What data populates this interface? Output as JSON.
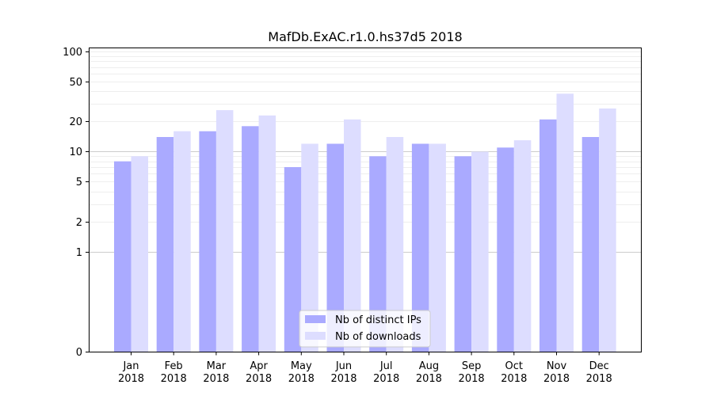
{
  "chart_data": {
    "type": "bar",
    "title": "MafDb.ExAC.r1.0.hs37d5 2018",
    "xlabel": "",
    "ylabel": "",
    "yscale": "symlog",
    "ylim": [
      0,
      110
    ],
    "yticks": [
      0,
      1,
      2,
      5,
      10,
      20,
      50,
      100
    ],
    "ytick_labels": [
      "0",
      "1",
      "2",
      "5",
      "10",
      "20",
      "50",
      "100"
    ],
    "categories": [
      {
        "month": "Jan",
        "year": "2018"
      },
      {
        "month": "Feb",
        "year": "2018"
      },
      {
        "month": "Mar",
        "year": "2018"
      },
      {
        "month": "Apr",
        "year": "2018"
      },
      {
        "month": "May",
        "year": "2018"
      },
      {
        "month": "Jun",
        "year": "2018"
      },
      {
        "month": "Jul",
        "year": "2018"
      },
      {
        "month": "Aug",
        "year": "2018"
      },
      {
        "month": "Sep",
        "year": "2018"
      },
      {
        "month": "Oct",
        "year": "2018"
      },
      {
        "month": "Nov",
        "year": "2018"
      },
      {
        "month": "Dec",
        "year": "2018"
      }
    ],
    "series": [
      {
        "name": "Nb of distinct IPs",
        "color": "#aaaaff",
        "values": [
          8,
          14,
          16,
          18,
          7,
          12,
          9,
          12,
          9,
          11,
          21,
          14
        ]
      },
      {
        "name": "Nb of downloads",
        "color": "#ddddff",
        "values": [
          9,
          16,
          26,
          23,
          12,
          21,
          14,
          12,
          10,
          13,
          38,
          27
        ]
      }
    ],
    "legend": {
      "position": "lower-center"
    },
    "grid": true
  }
}
